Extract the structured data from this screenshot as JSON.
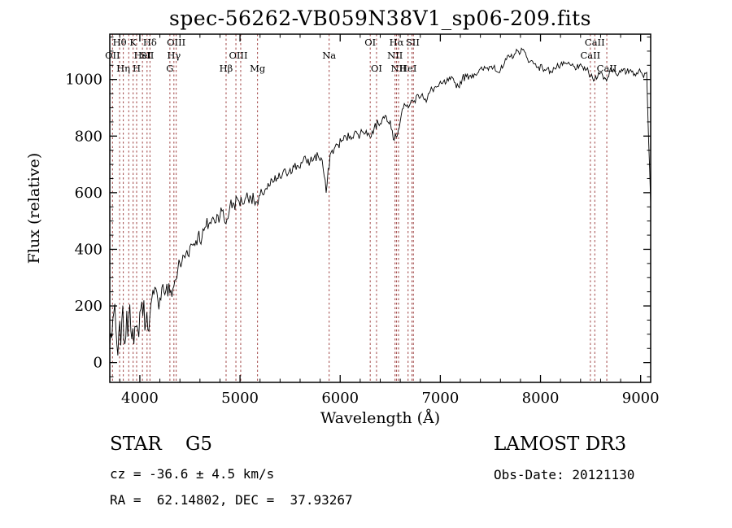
{
  "footer": {
    "class_line": "STAR    G5",
    "survey": "LAMOST DR3",
    "cz_line": "cz = -36.6 ± 4.5 km/s",
    "obs_date_line": "Obs-Date: 20121130",
    "radec_line": "RA =  62.14802, DEC =  37.93267"
  },
  "chart_data": {
    "type": "line",
    "title": "spec-56262-VB059N38V1_sp06-209.fits",
    "xlabel": "Wavelength (Å)",
    "ylabel": "Flux (relative)",
    "xlim": [
      3700,
      9100
    ],
    "ylim": [
      -70,
      1160
    ],
    "xticks": [
      4000,
      5000,
      6000,
      7000,
      8000,
      9000
    ],
    "yticks": [
      0,
      200,
      400,
      600,
      800,
      1000
    ],
    "x_minor_step": 200,
    "y_minor_step": 50,
    "grid": false,
    "line_color": "#000000",
    "marker_color": "#a04545",
    "series": {
      "name": "flux",
      "x_start": 3700,
      "x_step": 40,
      "values": [
        60,
        175,
        25,
        150,
        90,
        205,
        65,
        115,
        215,
        140,
        165,
        240,
        220,
        265,
        255,
        245,
        270,
        330,
        355,
        385,
        410,
        420,
        450,
        440,
        480,
        495,
        505,
        520,
        535,
        490,
        555,
        560,
        575,
        565,
        585,
        590,
        570,
        560,
        600,
        615,
        625,
        640,
        650,
        660,
        670,
        685,
        690,
        695,
        705,
        715,
        710,
        725,
        730,
        715,
        600,
        735,
        755,
        770,
        785,
        795,
        800,
        810,
        805,
        815,
        820,
        795,
        830,
        845,
        860,
        870,
        855,
        785,
        820,
        895,
        905,
        915,
        925,
        945,
        950,
        920,
        960,
        970,
        975,
        985,
        990,
        1000,
        990,
        975,
        1005,
        1010,
        1015,
        1020,
        1025,
        1035,
        1040,
        1045,
        1050,
        1025,
        1040,
        1070,
        1080,
        1090,
        1100,
        1105,
        1080,
        1065,
        1055,
        1045,
        1040,
        1035,
        1030,
        1040,
        1045,
        1050,
        1055,
        1050,
        1045,
        1040,
        1045,
        1035,
        1010,
        1000,
        1025,
        1015,
        995,
        1040,
        1030,
        1020,
        1030,
        1025,
        1035,
        1020,
        1030,
        1015,
        1025,
        560
      ]
    },
    "noise": {
      "seed": 7,
      "envelope": [
        [
          3700,
          75
        ],
        [
          4100,
          50
        ],
        [
          4600,
          32
        ],
        [
          5200,
          24
        ],
        [
          6000,
          18
        ],
        [
          7000,
          14
        ],
        [
          9100,
          12
        ]
      ]
    },
    "spectral_lines": [
      3727,
      3798,
      3835,
      3889,
      3933,
      3968,
      4026,
      4072,
      4101,
      4300,
      4340,
      4363,
      4861,
      4959,
      5007,
      5175,
      5890,
      6300,
      6363,
      6548,
      6563,
      6583,
      6678,
      6717,
      6731,
      8498,
      8542,
      8662
    ],
    "line_labels": [
      {
        "text": "Hθ",
        "wl": 3798,
        "row": 1
      },
      {
        "text": "K",
        "wl": 3933,
        "row": 1
      },
      {
        "text": "Hδ",
        "wl": 4101,
        "row": 1
      },
      {
        "text": "OIII",
        "wl": 4363,
        "row": 1
      },
      {
        "text": "OI",
        "wl": 6300,
        "row": 1
      },
      {
        "text": "Hα",
        "wl": 6563,
        "row": 1
      },
      {
        "text": "SII",
        "wl": 6724,
        "row": 1
      },
      {
        "text": "CaII",
        "wl": 8542,
        "row": 1
      },
      {
        "text": "OII",
        "wl": 3727,
        "row": 2
      },
      {
        "text": "HeI",
        "wl": 4026,
        "row": 2
      },
      {
        "text": "SII",
        "wl": 4072,
        "row": 2
      },
      {
        "text": "Hγ",
        "wl": 4340,
        "row": 2
      },
      {
        "text": "OIII",
        "wl": 4983,
        "row": 2
      },
      {
        "text": "Na",
        "wl": 5890,
        "row": 2
      },
      {
        "text": "NII",
        "wl": 6548,
        "row": 2
      },
      {
        "text": "CaII",
        "wl": 8498,
        "row": 2
      },
      {
        "text": "Hη",
        "wl": 3835,
        "row": 3
      },
      {
        "text": "H",
        "wl": 3968,
        "row": 3
      },
      {
        "text": "G",
        "wl": 4300,
        "row": 3
      },
      {
        "text": "Hβ",
        "wl": 4861,
        "row": 3
      },
      {
        "text": "Mg",
        "wl": 5175,
        "row": 3
      },
      {
        "text": "OI",
        "wl": 6363,
        "row": 3
      },
      {
        "text": "NII",
        "wl": 6583,
        "row": 3
      },
      {
        "text": "HeI",
        "wl": 6678,
        "row": 3
      },
      {
        "text": "CaII",
        "wl": 8662,
        "row": 3
      }
    ]
  }
}
